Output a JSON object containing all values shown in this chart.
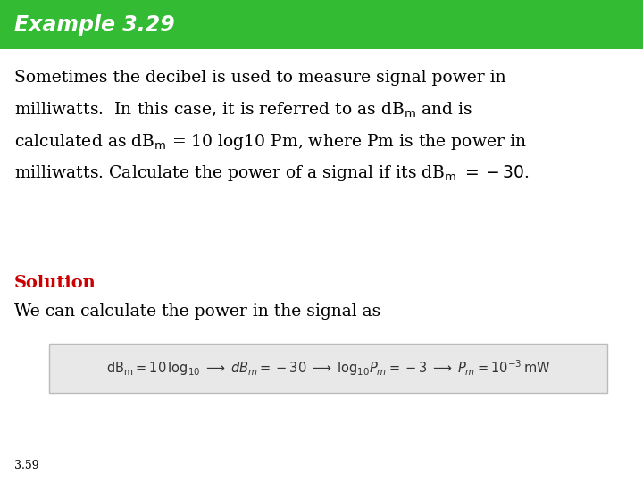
{
  "title": "Example 3.29",
  "title_bg_color": "#33bb33",
  "title_text_color": "#ffffff",
  "title_fontsize": 17,
  "body_bg_color": "#ffffff",
  "body_text_color": "#000000",
  "solution_label": "Solution",
  "solution_label_color": "#cc0000",
  "solution_text": "We can calculate the power in the signal as",
  "footer": "3.59",
  "footer_fontsize": 9,
  "formula_box_color": "#e8e8e8",
  "formula_box_edge_color": "#bbbbbb"
}
